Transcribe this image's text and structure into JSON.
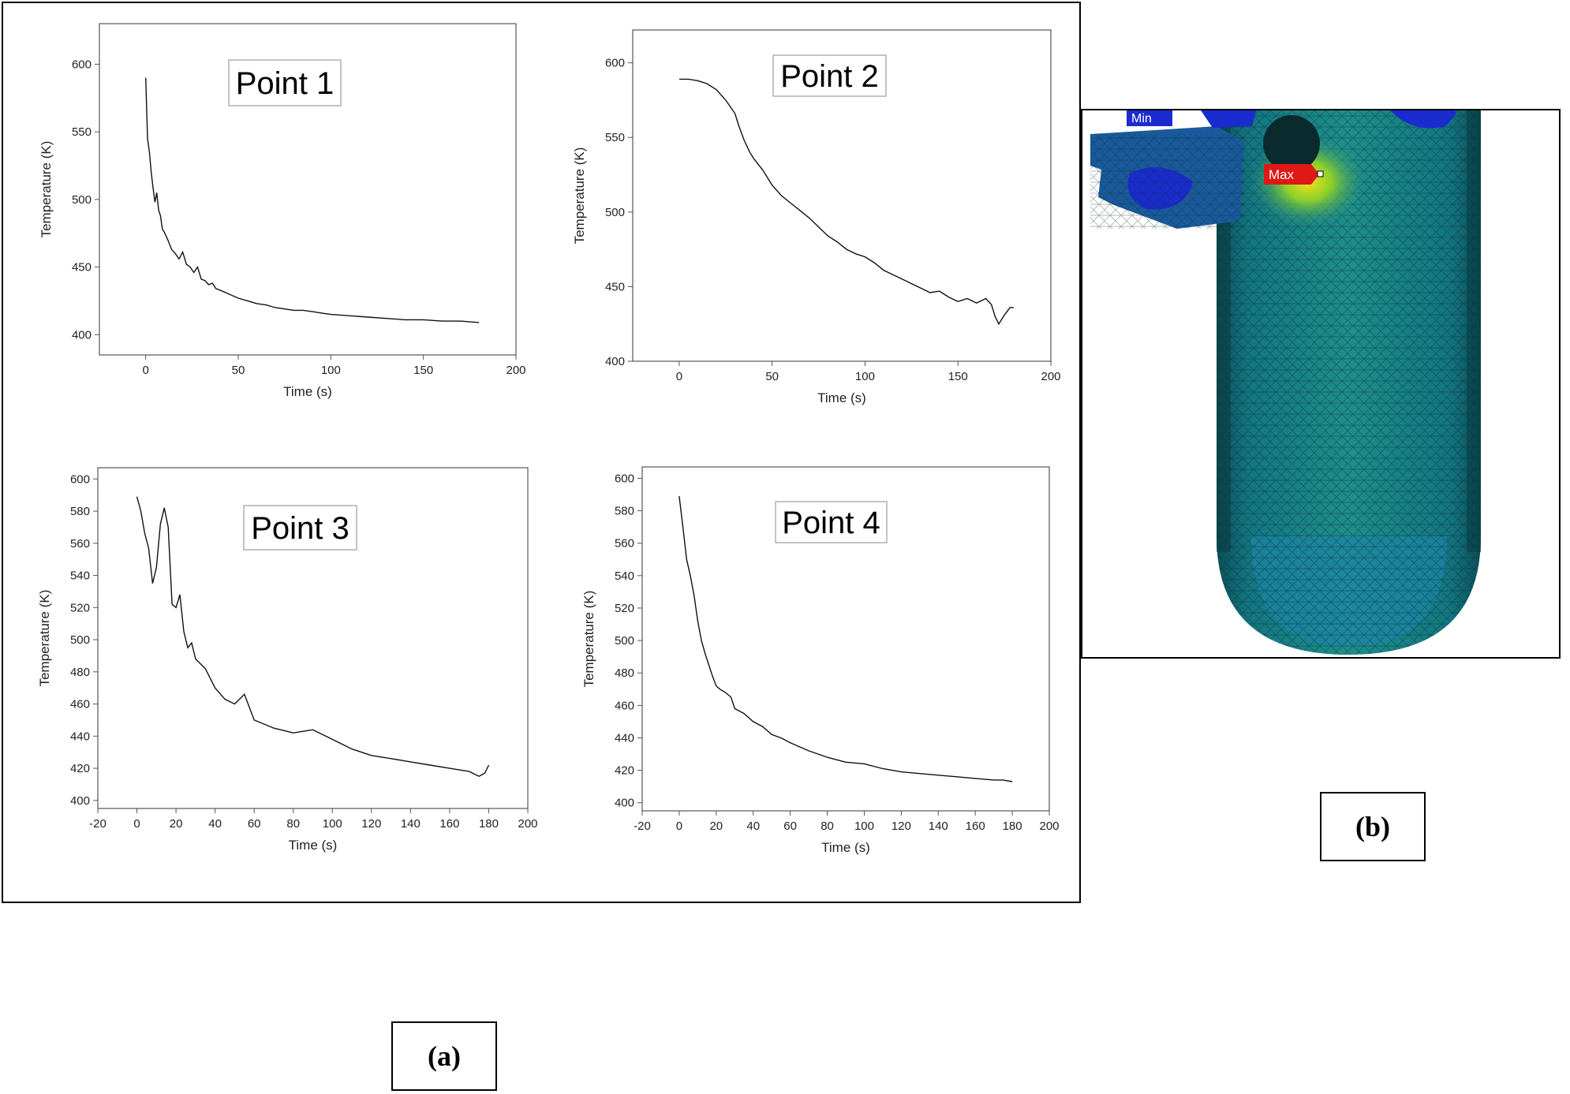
{
  "captions": {
    "a": "(a)",
    "b": "(b)"
  },
  "fea": {
    "min_label": "Min",
    "max_label": "Max",
    "min_color": "#1a2ccf",
    "max_color": "#e01818"
  },
  "chart_data": [
    {
      "type": "line",
      "title": "Point 1",
      "xlabel": "Time (s)",
      "ylabel": "Temperature (K)",
      "xlim": [
        -25,
        200
      ],
      "ylim": [
        385,
        630
      ],
      "xticks": [
        0,
        50,
        100,
        150,
        200
      ],
      "yticks": [
        400,
        450,
        500,
        550,
        600
      ],
      "series": [
        {
          "x": [
            0,
            1,
            2,
            3,
            4,
            5,
            6,
            7,
            8,
            9,
            10,
            12,
            14,
            16,
            18,
            20,
            22,
            24,
            26,
            28,
            30,
            32,
            34,
            36,
            38,
            40,
            45,
            50,
            55,
            60,
            65,
            70,
            75,
            80,
            85,
            90,
            95,
            100,
            110,
            120,
            130,
            140,
            150,
            160,
            170,
            180
          ],
          "y": [
            590,
            545,
            535,
            520,
            508,
            498,
            505,
            492,
            488,
            478,
            476,
            470,
            463,
            460,
            456,
            461,
            452,
            450,
            446,
            450,
            441,
            440,
            437,
            438,
            434,
            433,
            430,
            427,
            425,
            423,
            422,
            420,
            419,
            418,
            418,
            417,
            416,
            415,
            414,
            413,
            412,
            411,
            411,
            410,
            410,
            409
          ]
        }
      ]
    },
    {
      "type": "line",
      "title": "Point 2",
      "xlabel": "Time (s)",
      "ylabel": "Temperature (K)",
      "xlim": [
        -25,
        200
      ],
      "ylim": [
        400,
        622
      ],
      "xticks": [
        0,
        50,
        100,
        150,
        200
      ],
      "yticks": [
        400,
        450,
        500,
        550,
        600
      ],
      "series": [
        {
          "x": [
            0,
            5,
            10,
            15,
            20,
            25,
            30,
            32,
            35,
            38,
            40,
            45,
            50,
            55,
            60,
            65,
            70,
            75,
            80,
            85,
            90,
            95,
            100,
            105,
            110,
            115,
            120,
            125,
            130,
            135,
            140,
            145,
            150,
            155,
            160,
            165,
            168,
            170,
            172,
            175,
            178,
            180
          ],
          "y": [
            589,
            589,
            588,
            586,
            582,
            575,
            566,
            558,
            548,
            540,
            536,
            528,
            518,
            511,
            506,
            501,
            496,
            490,
            484,
            480,
            475,
            472,
            470,
            466,
            461,
            458,
            455,
            452,
            449,
            446,
            447,
            443,
            440,
            442,
            439,
            442,
            438,
            430,
            425,
            431,
            436,
            436
          ]
        }
      ]
    },
    {
      "type": "line",
      "title": "Point 3",
      "xlabel": "Time (s)",
      "ylabel": "Temperature (K)",
      "xlim": [
        -20,
        200
      ],
      "ylim": [
        395,
        607
      ],
      "xticks": [
        -20,
        0,
        20,
        40,
        60,
        80,
        100,
        120,
        140,
        160,
        180,
        200
      ],
      "yticks": [
        400,
        420,
        440,
        460,
        480,
        500,
        520,
        540,
        560,
        580,
        600
      ],
      "series": [
        {
          "x": [
            0,
            2,
            4,
            6,
            8,
            10,
            12,
            14,
            16,
            18,
            20,
            22,
            24,
            26,
            28,
            30,
            35,
            40,
            45,
            50,
            55,
            60,
            70,
            80,
            90,
            100,
            110,
            120,
            130,
            140,
            150,
            160,
            170,
            175,
            178,
            180
          ],
          "y": [
            589,
            580,
            566,
            557,
            535,
            545,
            572,
            582,
            570,
            522,
            520,
            528,
            505,
            495,
            498,
            488,
            482,
            470,
            463,
            460,
            466,
            450,
            445,
            442,
            444,
            438,
            432,
            428,
            426,
            424,
            422,
            420,
            418,
            415,
            417,
            422
          ]
        }
      ]
    },
    {
      "type": "line",
      "title": "Point 4",
      "xlabel": "Time (s)",
      "ylabel": "Temperature (K)",
      "xlim": [
        -20,
        200
      ],
      "ylim": [
        395,
        607
      ],
      "xticks": [
        -20,
        0,
        20,
        40,
        60,
        80,
        100,
        120,
        140,
        160,
        180,
        200
      ],
      "yticks": [
        400,
        420,
        440,
        460,
        480,
        500,
        520,
        540,
        560,
        580,
        600
      ],
      "series": [
        {
          "x": [
            0,
            2,
            4,
            6,
            8,
            10,
            12,
            14,
            16,
            18,
            20,
            22,
            25,
            28,
            30,
            35,
            40,
            45,
            50,
            55,
            60,
            70,
            80,
            90,
            100,
            110,
            120,
            130,
            140,
            150,
            160,
            170,
            175,
            180
          ],
          "y": [
            589,
            570,
            550,
            540,
            528,
            512,
            500,
            492,
            485,
            478,
            472,
            470,
            468,
            465,
            458,
            455,
            450,
            447,
            442,
            440,
            437,
            432,
            428,
            425,
            424,
            421,
            419,
            418,
            417,
            416,
            415,
            414,
            414,
            413
          ]
        }
      ]
    }
  ]
}
